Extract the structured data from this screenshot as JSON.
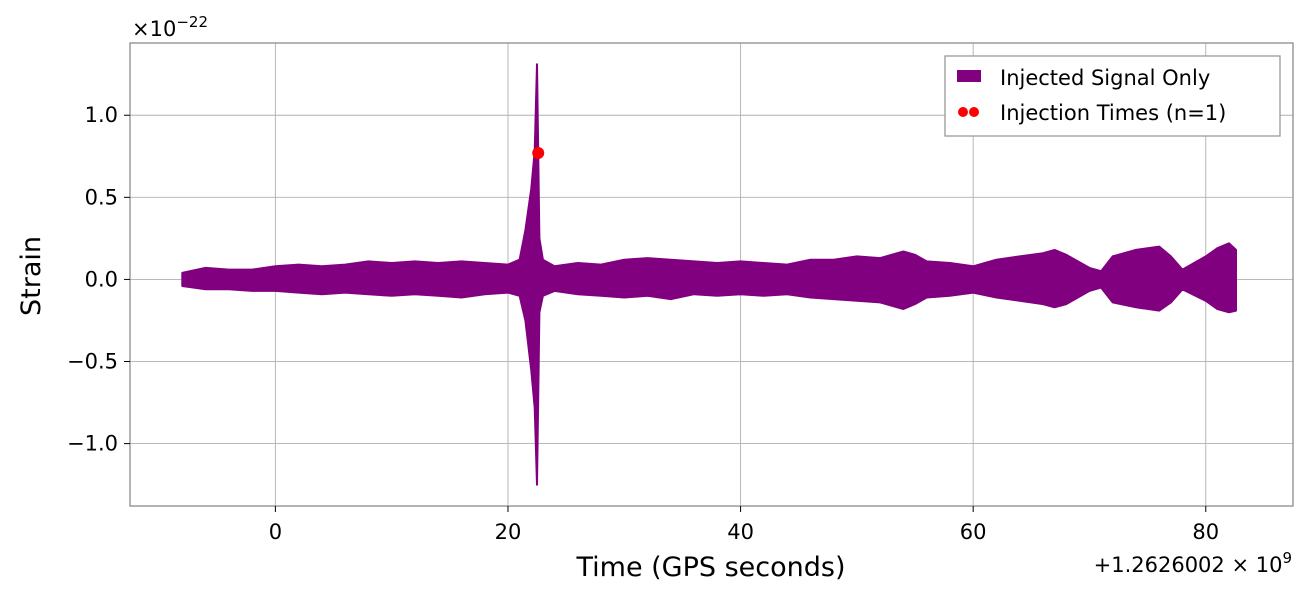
{
  "chart_data": {
    "type": "line",
    "title": "",
    "xlabel": "Time (GPS seconds)",
    "ylabel": "Strain",
    "x_offset_label": "+1.2626002 × 10",
    "x_offset_exp": "9",
    "y_multiplier_label": "×10",
    "y_multiplier_exp": "−22",
    "xlim": [
      -12.5,
      87.5
    ],
    "ylim": [
      -1.38,
      1.44
    ],
    "x_ticks": [
      0,
      20,
      40,
      60,
      80
    ],
    "x_tick_labels": [
      "0",
      "20",
      "40",
      "60",
      "80"
    ],
    "y_ticks": [
      -1.0,
      -0.5,
      0.0,
      0.5,
      1.0
    ],
    "y_tick_labels": [
      "−1.0",
      "−0.5",
      "0.0",
      "0.5",
      "1.0"
    ],
    "grid": true,
    "legend_position": "top-right",
    "series": [
      {
        "name": "Injected Signal Only",
        "kind": "filled-band",
        "color": "#800080",
        "x": [
          -8,
          -6,
          -4,
          -2,
          0,
          2,
          4,
          6,
          8,
          10,
          12,
          14,
          16,
          18,
          20,
          21,
          21.5,
          22,
          22.3,
          22.5,
          22.7,
          23,
          24,
          26,
          28,
          30,
          32,
          34,
          36,
          38,
          40,
          42,
          44,
          46,
          48,
          50,
          52,
          54,
          55,
          56,
          58,
          60,
          62,
          64,
          66,
          67,
          68,
          70,
          71,
          72,
          74,
          76,
          77,
          78,
          80,
          81,
          82,
          82.6
        ],
        "upper": [
          0.04,
          0.07,
          0.06,
          0.06,
          0.08,
          0.09,
          0.08,
          0.09,
          0.11,
          0.1,
          0.11,
          0.1,
          0.11,
          0.1,
          0.09,
          0.12,
          0.3,
          0.55,
          0.78,
          1.31,
          0.25,
          0.12,
          0.08,
          0.1,
          0.09,
          0.12,
          0.13,
          0.12,
          0.11,
          0.1,
          0.11,
          0.1,
          0.09,
          0.12,
          0.12,
          0.14,
          0.13,
          0.17,
          0.15,
          0.11,
          0.1,
          0.08,
          0.12,
          0.14,
          0.16,
          0.18,
          0.15,
          0.07,
          0.05,
          0.14,
          0.18,
          0.2,
          0.14,
          0.06,
          0.14,
          0.19,
          0.22,
          0.18
        ],
        "lower": [
          -0.04,
          -0.06,
          -0.06,
          -0.07,
          -0.07,
          -0.08,
          -0.09,
          -0.08,
          -0.09,
          -0.1,
          -0.09,
          -0.1,
          -0.11,
          -0.09,
          -0.08,
          -0.1,
          -0.25,
          -0.55,
          -0.78,
          -1.25,
          -0.2,
          -0.1,
          -0.07,
          -0.09,
          -0.1,
          -0.11,
          -0.1,
          -0.12,
          -0.09,
          -0.1,
          -0.09,
          -0.1,
          -0.09,
          -0.11,
          -0.12,
          -0.13,
          -0.14,
          -0.18,
          -0.15,
          -0.11,
          -0.1,
          -0.08,
          -0.11,
          -0.13,
          -0.15,
          -0.17,
          -0.15,
          -0.07,
          -0.05,
          -0.14,
          -0.17,
          -0.19,
          -0.14,
          -0.06,
          -0.13,
          -0.18,
          -0.2,
          -0.19
        ]
      },
      {
        "name": "Injection Times (n=1)",
        "kind": "scatter",
        "color": "#ff0000",
        "x": [
          22.6
        ],
        "y": [
          0.77
        ]
      }
    ]
  }
}
